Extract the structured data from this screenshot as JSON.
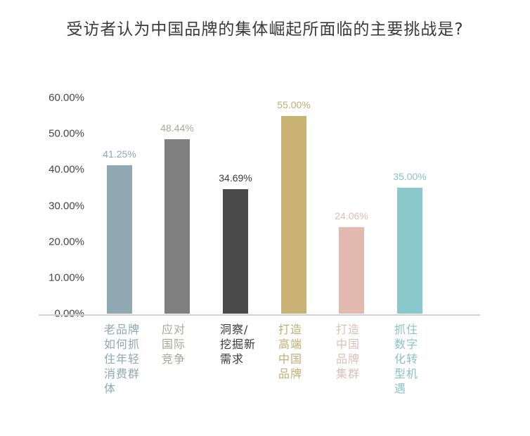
{
  "title": "受访者认为中国品牌的集体崛起所面临的主要挑战是?",
  "y_ticks": [
    "60.00%",
    "50.00%",
    "40.00%",
    "30.00%",
    "20.00%",
    "10.00%",
    "0.00%"
  ],
  "bars": [
    {
      "label": "老品牌如何抓住年轻消费群体",
      "lines": [
        "老品牌",
        "如何抓",
        "住年轻",
        "消费群",
        "体"
      ],
      "value": 41.25,
      "value_label": "41.25%",
      "color": "#8fa8b2",
      "label_color": "#8fa8b2"
    },
    {
      "label": "应对国际竞争",
      "lines": [
        "应对",
        "国际",
        "竞争"
      ],
      "value": 48.44,
      "value_label": "48.44%",
      "color": "#808080",
      "label_color": "#a8a89a"
    },
    {
      "label": "洞察/挖掘新需求",
      "lines": [
        "洞察/",
        "挖掘新",
        "需求"
      ],
      "value": 34.69,
      "value_label": "34.69%",
      "color": "#4a4a4a",
      "label_color": "#3a3a3a"
    },
    {
      "label": "打造高端中国品牌",
      "lines": [
        "打造",
        "高端",
        "中国",
        "品牌"
      ],
      "value": 55.0,
      "value_label": "55.00%",
      "color": "#c9b273",
      "label_color": "#c2ad72"
    },
    {
      "label": "打造中国品牌集群",
      "lines": [
        "打造",
        "中国",
        "品牌",
        "集群"
      ],
      "value": 24.06,
      "value_label": "24.06%",
      "color": "#e2bab0",
      "label_color": "#dcbfb8"
    },
    {
      "label": "抓住数字化转型机遇",
      "lines": [
        "抓住",
        "数字",
        "化转",
        "型机",
        "遇"
      ],
      "value": 35.0,
      "value_label": "35.00%",
      "color": "#89c8cb",
      "label_color": "#89c3c6"
    }
  ],
  "chart_data": {
    "type": "bar",
    "title": "受访者认为中国品牌的集体崛起所面临的主要挑战是?",
    "categories": [
      "老品牌如何抓住年轻消费群体",
      "应对国际竞争",
      "洞察/挖掘新需求",
      "打造高端中国品牌",
      "打造中国品牌集群",
      "抓住数字化转型机遇"
    ],
    "values": [
      41.25,
      48.44,
      34.69,
      55.0,
      24.06,
      35.0
    ],
    "value_labels": [
      "41.25%",
      "48.44%",
      "34.69%",
      "55.00%",
      "24.06%",
      "35.00%"
    ],
    "xlabel": "",
    "ylabel": "",
    "ylim": [
      0,
      60
    ],
    "y_ticks": [
      "0.00%",
      "10.00%",
      "20.00%",
      "30.00%",
      "40.00%",
      "50.00%",
      "60.00%"
    ],
    "grid": false,
    "legend": "none",
    "colors": [
      "#8fa8b2",
      "#808080",
      "#4a4a4a",
      "#c9b273",
      "#e2bab0",
      "#89c8cb"
    ]
  }
}
